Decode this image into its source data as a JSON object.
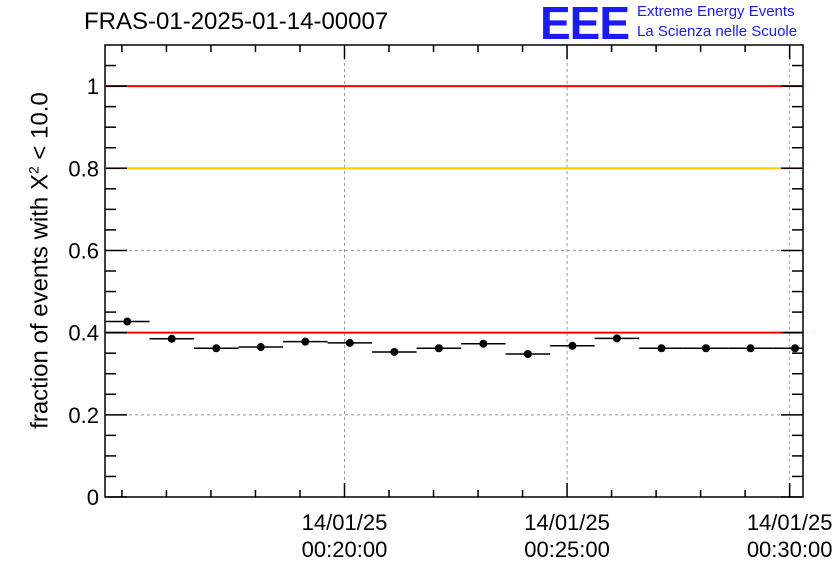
{
  "header": {
    "title": "FRAS-01-2025-01-14-00007",
    "logo_mark": "EEE",
    "logo_line1": "Extreme Energy Events",
    "logo_line2": "La Scienza nelle Scuole"
  },
  "chart_data": {
    "type": "scatter",
    "title": "FRAS-01-2025-01-14-00007",
    "xlabel": "",
    "ylabel_prefix": "fraction of events with ",
    "ylabel_symbol": "X",
    "ylabel_sup": "2",
    "ylabel_suffix": " < 10.0",
    "ylim": [
      0,
      1.1
    ],
    "yticks": [
      0,
      0.2,
      0.4,
      0.6,
      0.8,
      1
    ],
    "ytick_labels": [
      "0",
      "0.2",
      "0.4",
      "0.6",
      "0.8",
      "1"
    ],
    "xlim_minutes": [
      14.62,
      30.3
    ],
    "xticks_minutes": [
      20,
      25,
      30
    ],
    "xtick_labels_date": [
      "14/01/25",
      "14/01/25",
      "14/01/25"
    ],
    "xtick_labels_time": [
      "00:20:00",
      "00:25:00",
      "00:30:00"
    ],
    "bin_width_minutes": 1,
    "series": [
      {
        "name": "fraction",
        "x_minutes": [
          15.12,
          16.12,
          17.12,
          18.12,
          19.12,
          20.12,
          21.12,
          22.12,
          23.12,
          24.12,
          25.12,
          26.12,
          27.12,
          28.12,
          29.12,
          30.12
        ],
        "values": [
          0.427,
          0.385,
          0.362,
          0.365,
          0.378,
          0.375,
          0.353,
          0.362,
          0.373,
          0.348,
          0.368,
          0.386,
          0.362,
          0.362,
          0.362,
          0.362
        ]
      }
    ],
    "reference_lines": [
      {
        "value": 1.0,
        "color": "#ff0000"
      },
      {
        "value": 0.8,
        "color": "#ffc800"
      },
      {
        "value": 0.4,
        "color": "#ff0000"
      }
    ]
  }
}
